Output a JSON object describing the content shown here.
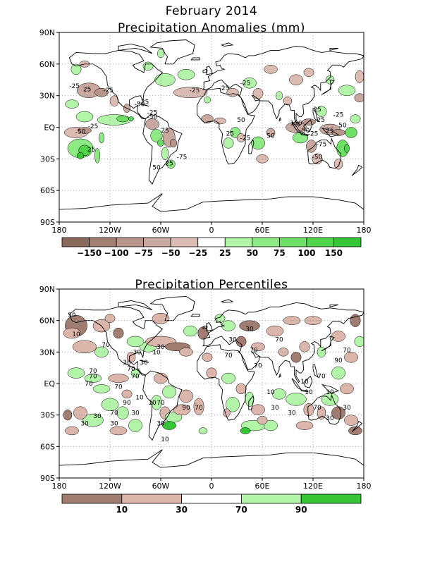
{
  "title": "February 2014",
  "panels": [
    {
      "title": "Precipitation Anomalies (mm)",
      "lat_ticks": [
        "90N",
        "60N",
        "30N",
        "EQ",
        "30S",
        "60S",
        "90S"
      ],
      "lon_ticks": [
        "180",
        "120W",
        "60W",
        "0",
        "60E",
        "120E",
        "180"
      ],
      "colorbar": {
        "labels": [
          "-150",
          "-100",
          "-75",
          "-50",
          "-25",
          "25",
          "50",
          "75",
          "100",
          "150"
        ],
        "colors": [
          "#8b6a5e",
          "#a27f73",
          "#b8958b",
          "#c9a89f",
          "#dcbcb2",
          "#ffffff",
          "#b3f5a8",
          "#8eea84",
          "#6ddf64",
          "#4fd44a",
          "#35c535"
        ]
      },
      "contour_labels": [
        "-25",
        "25",
        "-25",
        "-25",
        "-25",
        "-50",
        "25",
        "-50",
        "-25",
        "-50",
        "25",
        "-75",
        "25",
        "50",
        "-25",
        "-25",
        "-25",
        "50",
        "25",
        "-25",
        "50",
        "100",
        "-50",
        "25",
        "-25",
        "-25",
        "50",
        "25",
        "-75",
        "-25",
        "-50"
      ]
    },
    {
      "title": "Precipitation Percentiles",
      "lat_ticks": [
        "90N",
        "60N",
        "30N",
        "EQ",
        "30S",
        "60S",
        "90S"
      ],
      "lon_ticks": [
        "180",
        "120W",
        "60W",
        "0",
        "60E",
        "120E",
        "180"
      ],
      "colorbar": {
        "labels": [
          "10",
          "30",
          "70",
          "90"
        ],
        "colors": [
          "#a07d70",
          "#dcb6aa",
          "#ffffff",
          "#b3f5a8",
          "#35c535"
        ]
      },
      "contour_labels": [
        "50",
        "10",
        "70",
        "70",
        "70",
        "70",
        "30",
        "30",
        "30",
        "70",
        "30",
        "10",
        "70",
        "30",
        "30",
        "10",
        "10",
        "70",
        "70",
        "90",
        "30",
        "30",
        "70",
        "30",
        "10",
        "90",
        "70",
        "70",
        "30",
        "30",
        "70",
        "70",
        "10",
        "30",
        "10",
        "10",
        "70",
        "30",
        "90",
        "70",
        "30",
        "10",
        "70",
        "30",
        "70"
      ]
    }
  ]
}
